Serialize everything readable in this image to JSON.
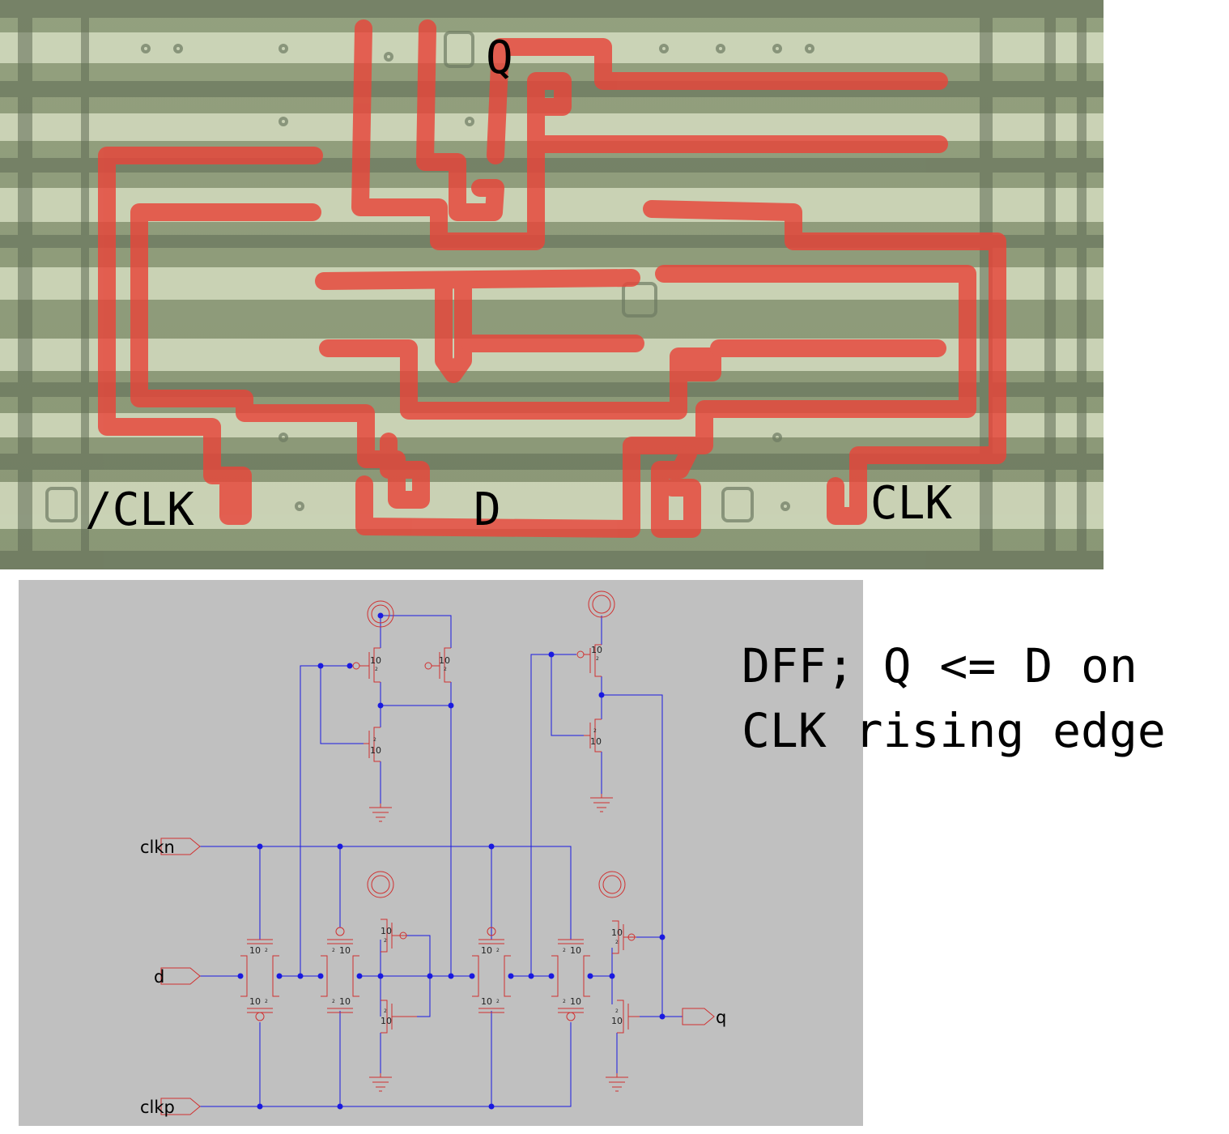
{
  "photo": {
    "labels": {
      "q": "Q",
      "clk_n": "/CLK",
      "d": "D",
      "clk": "CLK"
    },
    "colors": {
      "trace": "#e5453c",
      "die_light": "#d7e0c3",
      "die_dark": "#5f6b55"
    }
  },
  "caption": {
    "line1": "DFF; Q <= D on",
    "line2": "CLK rising edge"
  },
  "schematic": {
    "background": "#c0c0c0",
    "wire_color": "#1010e0",
    "device_color": "#d03030",
    "pins": {
      "clkn": "clkn",
      "d": "d",
      "clkp": "clkp",
      "q": "q"
    },
    "device_size": "10",
    "device_size_small": "2"
  }
}
